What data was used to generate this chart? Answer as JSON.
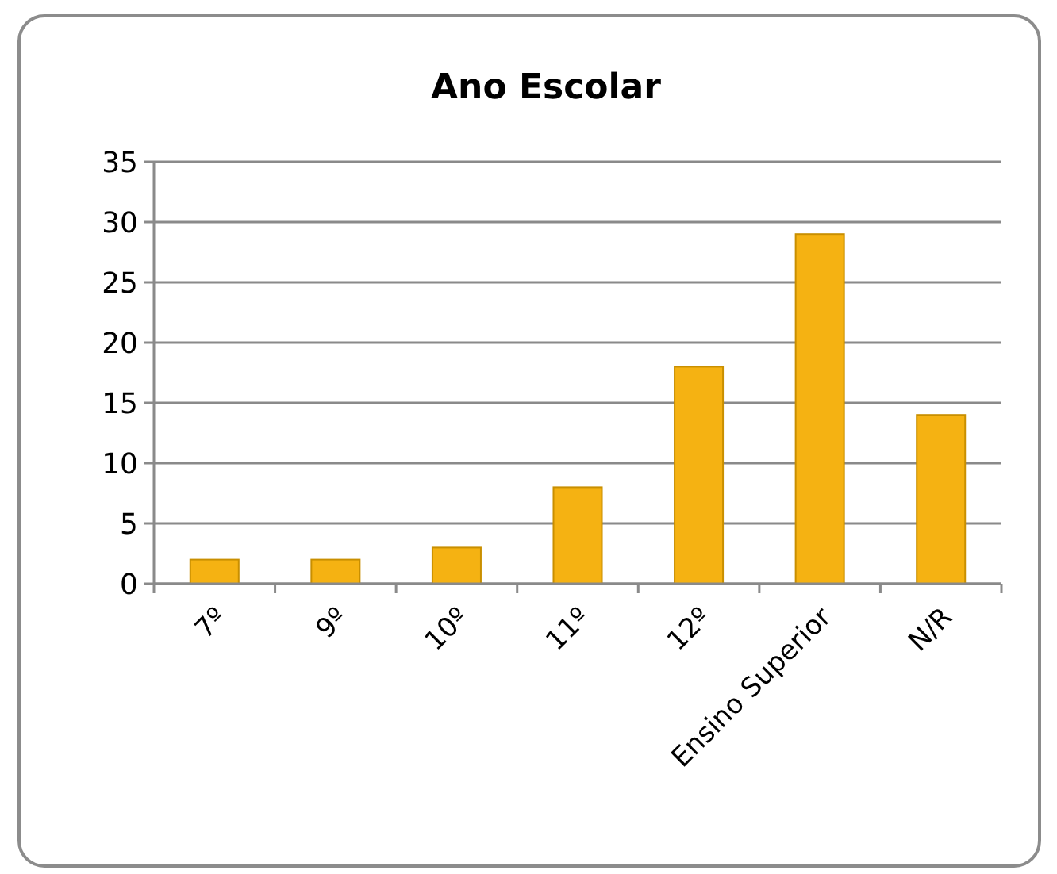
{
  "chart_data": {
    "type": "bar",
    "title": "Ano Escolar",
    "categories": [
      "7º",
      "9º",
      "10º",
      "11º",
      "12º",
      "Ensino Superior",
      "N/R"
    ],
    "values": [
      2,
      2,
      3,
      8,
      18,
      29,
      14
    ],
    "color": "#f5b212",
    "ylim": [
      0,
      35
    ],
    "yticks": [
      0,
      5,
      10,
      15,
      20,
      25,
      30,
      35
    ],
    "grid": "y"
  }
}
